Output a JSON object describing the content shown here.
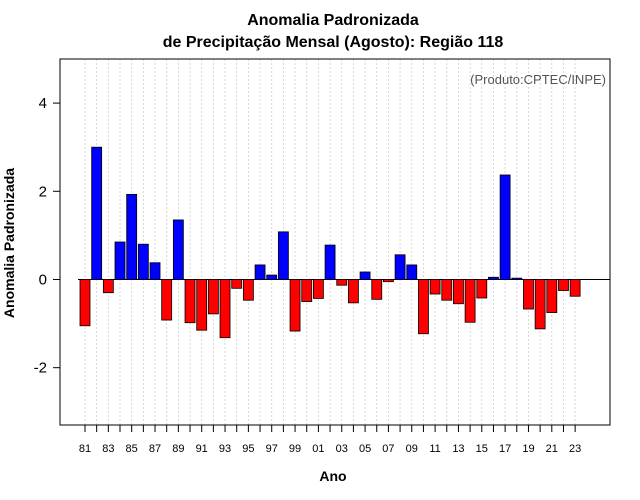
{
  "chart_data": {
    "type": "bar",
    "title_line1": "Anomalia Padronizada",
    "title_line2": "de Precipitação Mensal (Agosto): Região 118",
    "xlabel": "Ano",
    "ylabel": "Anomalia Padronizada",
    "credit": "(Produto:CPTEC/INPE)",
    "ylim": [
      -3.3,
      5.0
    ],
    "yticks": [
      -2,
      0,
      2,
      4
    ],
    "ytick_labels": [
      "-2",
      "0",
      "2",
      "4"
    ],
    "categories": [
      "81",
      "82",
      "83",
      "84",
      "85",
      "86",
      "87",
      "88",
      "89",
      "90",
      "91",
      "92",
      "93",
      "94",
      "95",
      "96",
      "97",
      "98",
      "99",
      "00",
      "01",
      "02",
      "03",
      "04",
      "05",
      "06",
      "07",
      "08",
      "09",
      "10",
      "11",
      "12",
      "13",
      "14",
      "15",
      "16",
      "17",
      "18",
      "19",
      "20",
      "21",
      "22",
      "23"
    ],
    "xtick_labels": [
      "81",
      "83",
      "85",
      "87",
      "89",
      "91",
      "93",
      "95",
      "97",
      "99",
      "01",
      "03",
      "05",
      "07",
      "09",
      "11",
      "13",
      "15",
      "17",
      "19",
      "21",
      "23"
    ],
    "values": [
      -1.05,
      3.0,
      -0.3,
      0.85,
      1.93,
      0.8,
      0.38,
      -0.92,
      1.35,
      -0.98,
      -1.15,
      -0.78,
      -1.32,
      -0.2,
      -0.47,
      0.33,
      0.1,
      1.08,
      -1.17,
      -0.5,
      -0.43,
      0.78,
      -0.13,
      -0.53,
      0.17,
      -0.45,
      -0.05,
      0.56,
      0.33,
      -1.23,
      -0.33,
      -0.47,
      -0.55,
      -0.97,
      -0.42,
      0.05,
      2.37,
      0.03,
      -0.67,
      -1.12,
      -0.75,
      -0.25,
      -0.38
    ],
    "positive_color": "#0000ff",
    "negative_color": "#ff0000"
  }
}
